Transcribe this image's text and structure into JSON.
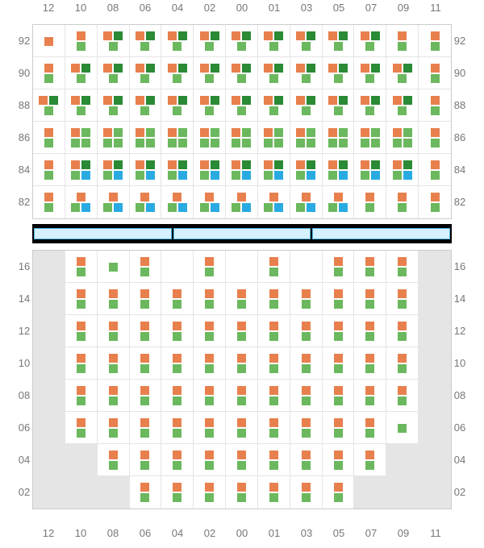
{
  "colors": {
    "orange": "#e8804e",
    "green": "#6bb85e",
    "darkgreen": "#2a8a35",
    "blue": "#29abe2",
    "blocked": "#e5e5e5",
    "grid_border": "#e5e5e5",
    "label": "#777777",
    "divider_bg": "#000000",
    "divider_fill": "#d5f0ff",
    "divider_border": "#4db8e8"
  },
  "columns": [
    "12",
    "10",
    "08",
    "06",
    "04",
    "02",
    "00",
    "01",
    "03",
    "05",
    "07",
    "09",
    "11"
  ],
  "upper": {
    "rows": [
      "92",
      "90",
      "88",
      "86",
      "84",
      "82"
    ],
    "cells": [
      [
        [
          "o"
        ],
        [
          "o",
          "g"
        ],
        [
          "odg",
          "g"
        ],
        [
          "odg",
          "g"
        ],
        [
          "odg",
          "g"
        ],
        [
          "odg",
          "g"
        ],
        [
          "odg",
          "g"
        ],
        [
          "odg",
          "g"
        ],
        [
          "odg",
          "g"
        ],
        [
          "odg",
          "g"
        ],
        [
          "odg",
          "g"
        ],
        [
          "o",
          "g"
        ],
        [
          "o",
          "g"
        ]
      ],
      [
        [
          "o",
          "g"
        ],
        [
          "odg",
          "g"
        ],
        [
          "odg",
          "g"
        ],
        [
          "odg",
          "g"
        ],
        [
          "odg",
          "g"
        ],
        [
          "odg",
          "g"
        ],
        [
          "odg",
          "g"
        ],
        [
          "odg",
          "g"
        ],
        [
          "odg",
          "g"
        ],
        [
          "odg",
          "g"
        ],
        [
          "odg",
          "g"
        ],
        [
          "odg",
          "g"
        ],
        [
          "o",
          "g"
        ]
      ],
      [
        [
          "odg",
          "g"
        ],
        [
          "odg",
          "g"
        ],
        [
          "odg",
          "g"
        ],
        [
          "odg",
          "g"
        ],
        [
          "odg",
          "g"
        ],
        [
          "odg",
          "g"
        ],
        [
          "odg",
          "g"
        ],
        [
          "odg",
          "g"
        ],
        [
          "odg",
          "g"
        ],
        [
          "odg",
          "g"
        ],
        [
          "odg",
          "g"
        ],
        [
          "odg",
          "g"
        ],
        [
          "o",
          "g"
        ]
      ],
      [
        [
          "o",
          "g"
        ],
        [
          "og",
          "gg"
        ],
        [
          "og",
          "gg"
        ],
        [
          "og",
          "gg"
        ],
        [
          "og",
          "gg"
        ],
        [
          "og",
          "gg"
        ],
        [
          "og",
          "gg"
        ],
        [
          "og",
          "gg"
        ],
        [
          "og",
          "gg"
        ],
        [
          "og",
          "gg"
        ],
        [
          "og",
          "gg"
        ],
        [
          "og",
          "gg"
        ],
        [
          "o",
          "g"
        ]
      ],
      [
        [
          "o",
          "g"
        ],
        [
          "odg",
          "gb"
        ],
        [
          "odg",
          "gb"
        ],
        [
          "odg",
          "gb"
        ],
        [
          "odg",
          "gb"
        ],
        [
          "odg",
          "gb"
        ],
        [
          "odg",
          "gb"
        ],
        [
          "odg",
          "gb"
        ],
        [
          "odg",
          "gb"
        ],
        [
          "odg",
          "gb"
        ],
        [
          "odg",
          "gb"
        ],
        [
          "odg",
          "gb"
        ],
        [
          "o",
          "g"
        ]
      ],
      [
        [
          "o",
          "g"
        ],
        [
          "o",
          "gb"
        ],
        [
          "o",
          "gb"
        ],
        [
          "o",
          "gb"
        ],
        [
          "o",
          "gb"
        ],
        [
          "o",
          "gb"
        ],
        [
          "o",
          "gb"
        ],
        [
          "o",
          "gb"
        ],
        [
          "o",
          "gb"
        ],
        [
          "o",
          "gb"
        ],
        [
          "o",
          "g"
        ],
        [
          "o",
          "g"
        ],
        [
          "o",
          "g"
        ]
      ]
    ]
  },
  "lower": {
    "rows": [
      "16",
      "14",
      "12",
      "10",
      "08",
      "06",
      "04",
      "02"
    ],
    "cells": [
      [
        [
          "X"
        ],
        [
          "o",
          "g"
        ],
        [
          "g"
        ],
        [
          "o",
          "g"
        ],
        [],
        [
          "o",
          "g"
        ],
        [],
        [
          "o",
          "g"
        ],
        [],
        [
          "o",
          "g"
        ],
        [
          "o",
          "g"
        ],
        [
          "o",
          "g"
        ],
        [
          "X"
        ]
      ],
      [
        [
          "X"
        ],
        [
          "o",
          "g"
        ],
        [
          "o",
          "g"
        ],
        [
          "o",
          "g"
        ],
        [
          "o",
          "g"
        ],
        [
          "o",
          "g"
        ],
        [
          "o",
          "g"
        ],
        [
          "o",
          "g"
        ],
        [
          "o",
          "g"
        ],
        [
          "o",
          "g"
        ],
        [
          "o",
          "g"
        ],
        [
          "o",
          "g"
        ],
        [
          "X"
        ]
      ],
      [
        [
          "X"
        ],
        [
          "o",
          "g"
        ],
        [
          "o",
          "g"
        ],
        [
          "o",
          "g"
        ],
        [
          "o",
          "g"
        ],
        [
          "o",
          "g"
        ],
        [
          "o",
          "g"
        ],
        [
          "o",
          "g"
        ],
        [
          "o",
          "g"
        ],
        [
          "o",
          "g"
        ],
        [
          "o",
          "g"
        ],
        [
          "o",
          "g"
        ],
        [
          "X"
        ]
      ],
      [
        [
          "X"
        ],
        [
          "o",
          "g"
        ],
        [
          "o",
          "g"
        ],
        [
          "o",
          "g"
        ],
        [
          "o",
          "g"
        ],
        [
          "o",
          "g"
        ],
        [
          "o",
          "g"
        ],
        [
          "o",
          "g"
        ],
        [
          "o",
          "g"
        ],
        [
          "o",
          "g"
        ],
        [
          "o",
          "g"
        ],
        [
          "o",
          "g"
        ],
        [
          "X"
        ]
      ],
      [
        [
          "X"
        ],
        [
          "o",
          "g"
        ],
        [
          "o",
          "g"
        ],
        [
          "o",
          "g"
        ],
        [
          "o",
          "g"
        ],
        [
          "o",
          "g"
        ],
        [
          "o",
          "g"
        ],
        [
          "o",
          "g"
        ],
        [
          "o",
          "g"
        ],
        [
          "o",
          "g"
        ],
        [
          "o",
          "g"
        ],
        [
          "o",
          "g"
        ],
        [
          "X"
        ]
      ],
      [
        [
          "X"
        ],
        [
          "o",
          "g"
        ],
        [
          "o",
          "g"
        ],
        [
          "o",
          "g"
        ],
        [
          "o",
          "g"
        ],
        [
          "o",
          "g"
        ],
        [
          "o",
          "g"
        ],
        [
          "o",
          "g"
        ],
        [
          "o",
          "g"
        ],
        [
          "o",
          "g"
        ],
        [
          "o",
          "g"
        ],
        [
          "g"
        ],
        [
          "X"
        ]
      ],
      [
        [
          "X"
        ],
        [
          "X"
        ],
        [
          "o",
          "g"
        ],
        [
          "o",
          "g"
        ],
        [
          "o",
          "g"
        ],
        [
          "o",
          "g"
        ],
        [
          "o",
          "g"
        ],
        [
          "o",
          "g"
        ],
        [
          "o",
          "g"
        ],
        [
          "o",
          "g"
        ],
        [
          "o",
          "g"
        ],
        [
          "X"
        ],
        [
          "X"
        ]
      ],
      [
        [
          "X"
        ],
        [
          "X"
        ],
        [
          "X"
        ],
        [
          "o",
          "g"
        ],
        [
          "o",
          "g"
        ],
        [
          "o",
          "g"
        ],
        [
          "o",
          "g"
        ],
        [
          "o",
          "g"
        ],
        [
          "o",
          "g"
        ],
        [
          "o",
          "g"
        ],
        [
          "X"
        ],
        [
          "X"
        ],
        [
          "X"
        ]
      ]
    ]
  },
  "divider_segments": 3
}
